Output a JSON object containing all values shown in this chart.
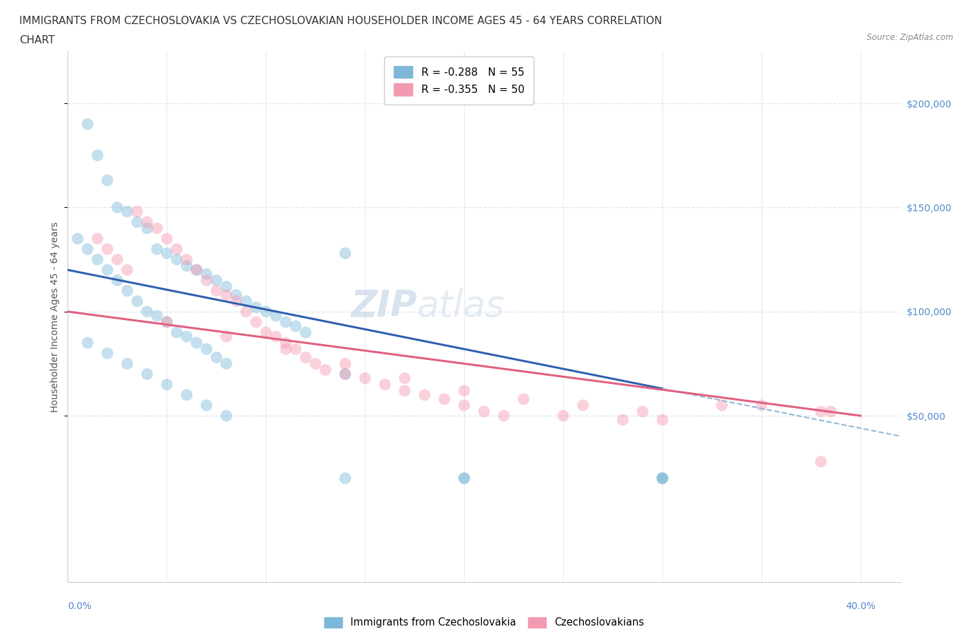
{
  "title_line1": "IMMIGRANTS FROM CZECHOSLOVAKIA VS CZECHOSLOVAKIAN HOUSEHOLDER INCOME AGES 45 - 64 YEARS CORRELATION",
  "title_line2": "CHART",
  "source_text": "Source: ZipAtlas.com",
  "ylabel": "Householder Income Ages 45 - 64 years",
  "ytick_values": [
    50000,
    100000,
    150000,
    200000
  ],
  "legend_entries": [
    {
      "label": "R = -0.288   N = 55",
      "color": "#a8c8e8"
    },
    {
      "label": "R = -0.355   N = 50",
      "color": "#f4a8b8"
    }
  ],
  "legend_series": [
    "Immigrants from Czechoslovakia",
    "Czechoslovakians"
  ],
  "watermark_zip": "ZIP",
  "watermark_atlas": "atlas",
  "blue_scatter_x": [
    1.0,
    1.5,
    2.0,
    2.5,
    3.0,
    3.5,
    4.0,
    4.5,
    5.0,
    5.5,
    6.0,
    6.5,
    7.0,
    7.5,
    8.0,
    8.5,
    9.0,
    9.5,
    10.0,
    10.5,
    11.0,
    11.5,
    12.0,
    0.5,
    1.0,
    1.5,
    2.0,
    2.5,
    3.0,
    3.5,
    4.0,
    4.5,
    5.0,
    5.5,
    6.0,
    6.5,
    7.0,
    7.5,
    8.0,
    1.0,
    2.0,
    3.0,
    4.0,
    5.0,
    6.0,
    7.0,
    8.0,
    14.0,
    20.0,
    20.0,
    14.0,
    30.0,
    14.0,
    30.0,
    30.0
  ],
  "blue_scatter_y": [
    190000,
    175000,
    163000,
    150000,
    148000,
    143000,
    140000,
    130000,
    128000,
    125000,
    122000,
    120000,
    118000,
    115000,
    112000,
    108000,
    105000,
    102000,
    100000,
    98000,
    95000,
    93000,
    90000,
    135000,
    130000,
    125000,
    120000,
    115000,
    110000,
    105000,
    100000,
    98000,
    95000,
    90000,
    88000,
    85000,
    82000,
    78000,
    75000,
    85000,
    80000,
    75000,
    70000,
    65000,
    60000,
    55000,
    50000,
    128000,
    20000,
    20000,
    70000,
    20000,
    20000,
    20000,
    20000
  ],
  "pink_scatter_x": [
    1.5,
    2.0,
    2.5,
    3.0,
    3.5,
    4.0,
    4.5,
    5.0,
    5.5,
    6.0,
    6.5,
    7.0,
    7.5,
    8.0,
    8.5,
    9.0,
    9.5,
    10.0,
    10.5,
    11.0,
    11.5,
    12.0,
    12.5,
    13.0,
    14.0,
    15.0,
    16.0,
    17.0,
    18.0,
    19.0,
    20.0,
    21.0,
    22.0,
    25.0,
    28.0,
    30.0,
    35.0,
    38.0,
    38.5,
    5.0,
    8.0,
    11.0,
    14.0,
    17.0,
    20.0,
    23.0,
    26.0,
    29.0,
    33.0,
    38.0
  ],
  "pink_scatter_y": [
    135000,
    130000,
    125000,
    120000,
    148000,
    143000,
    140000,
    135000,
    130000,
    125000,
    120000,
    115000,
    110000,
    108000,
    105000,
    100000,
    95000,
    90000,
    88000,
    85000,
    82000,
    78000,
    75000,
    72000,
    70000,
    68000,
    65000,
    62000,
    60000,
    58000,
    55000,
    52000,
    50000,
    50000,
    48000,
    48000,
    55000,
    52000,
    52000,
    95000,
    88000,
    82000,
    75000,
    68000,
    62000,
    58000,
    55000,
    52000,
    55000,
    28000
  ],
  "blue_color": "#7db8d8",
  "pink_color": "#f49ab0",
  "blue_line_color": "#3060b0",
  "pink_line_color": "#e06080",
  "dashed_line_color": "#90b8d8",
  "grid_color": "#e0e8f0",
  "background_color": "#ffffff",
  "ylim_bottom": -30000,
  "ylim_top": 225000,
  "xlim_left": 0.0,
  "xlim_right": 42.0,
  "xmax_data": 40.0,
  "title_fontsize": 11,
  "axis_label_fontsize": 10,
  "tick_fontsize": 10,
  "scatter_size": 150,
  "scatter_alpha": 0.45
}
